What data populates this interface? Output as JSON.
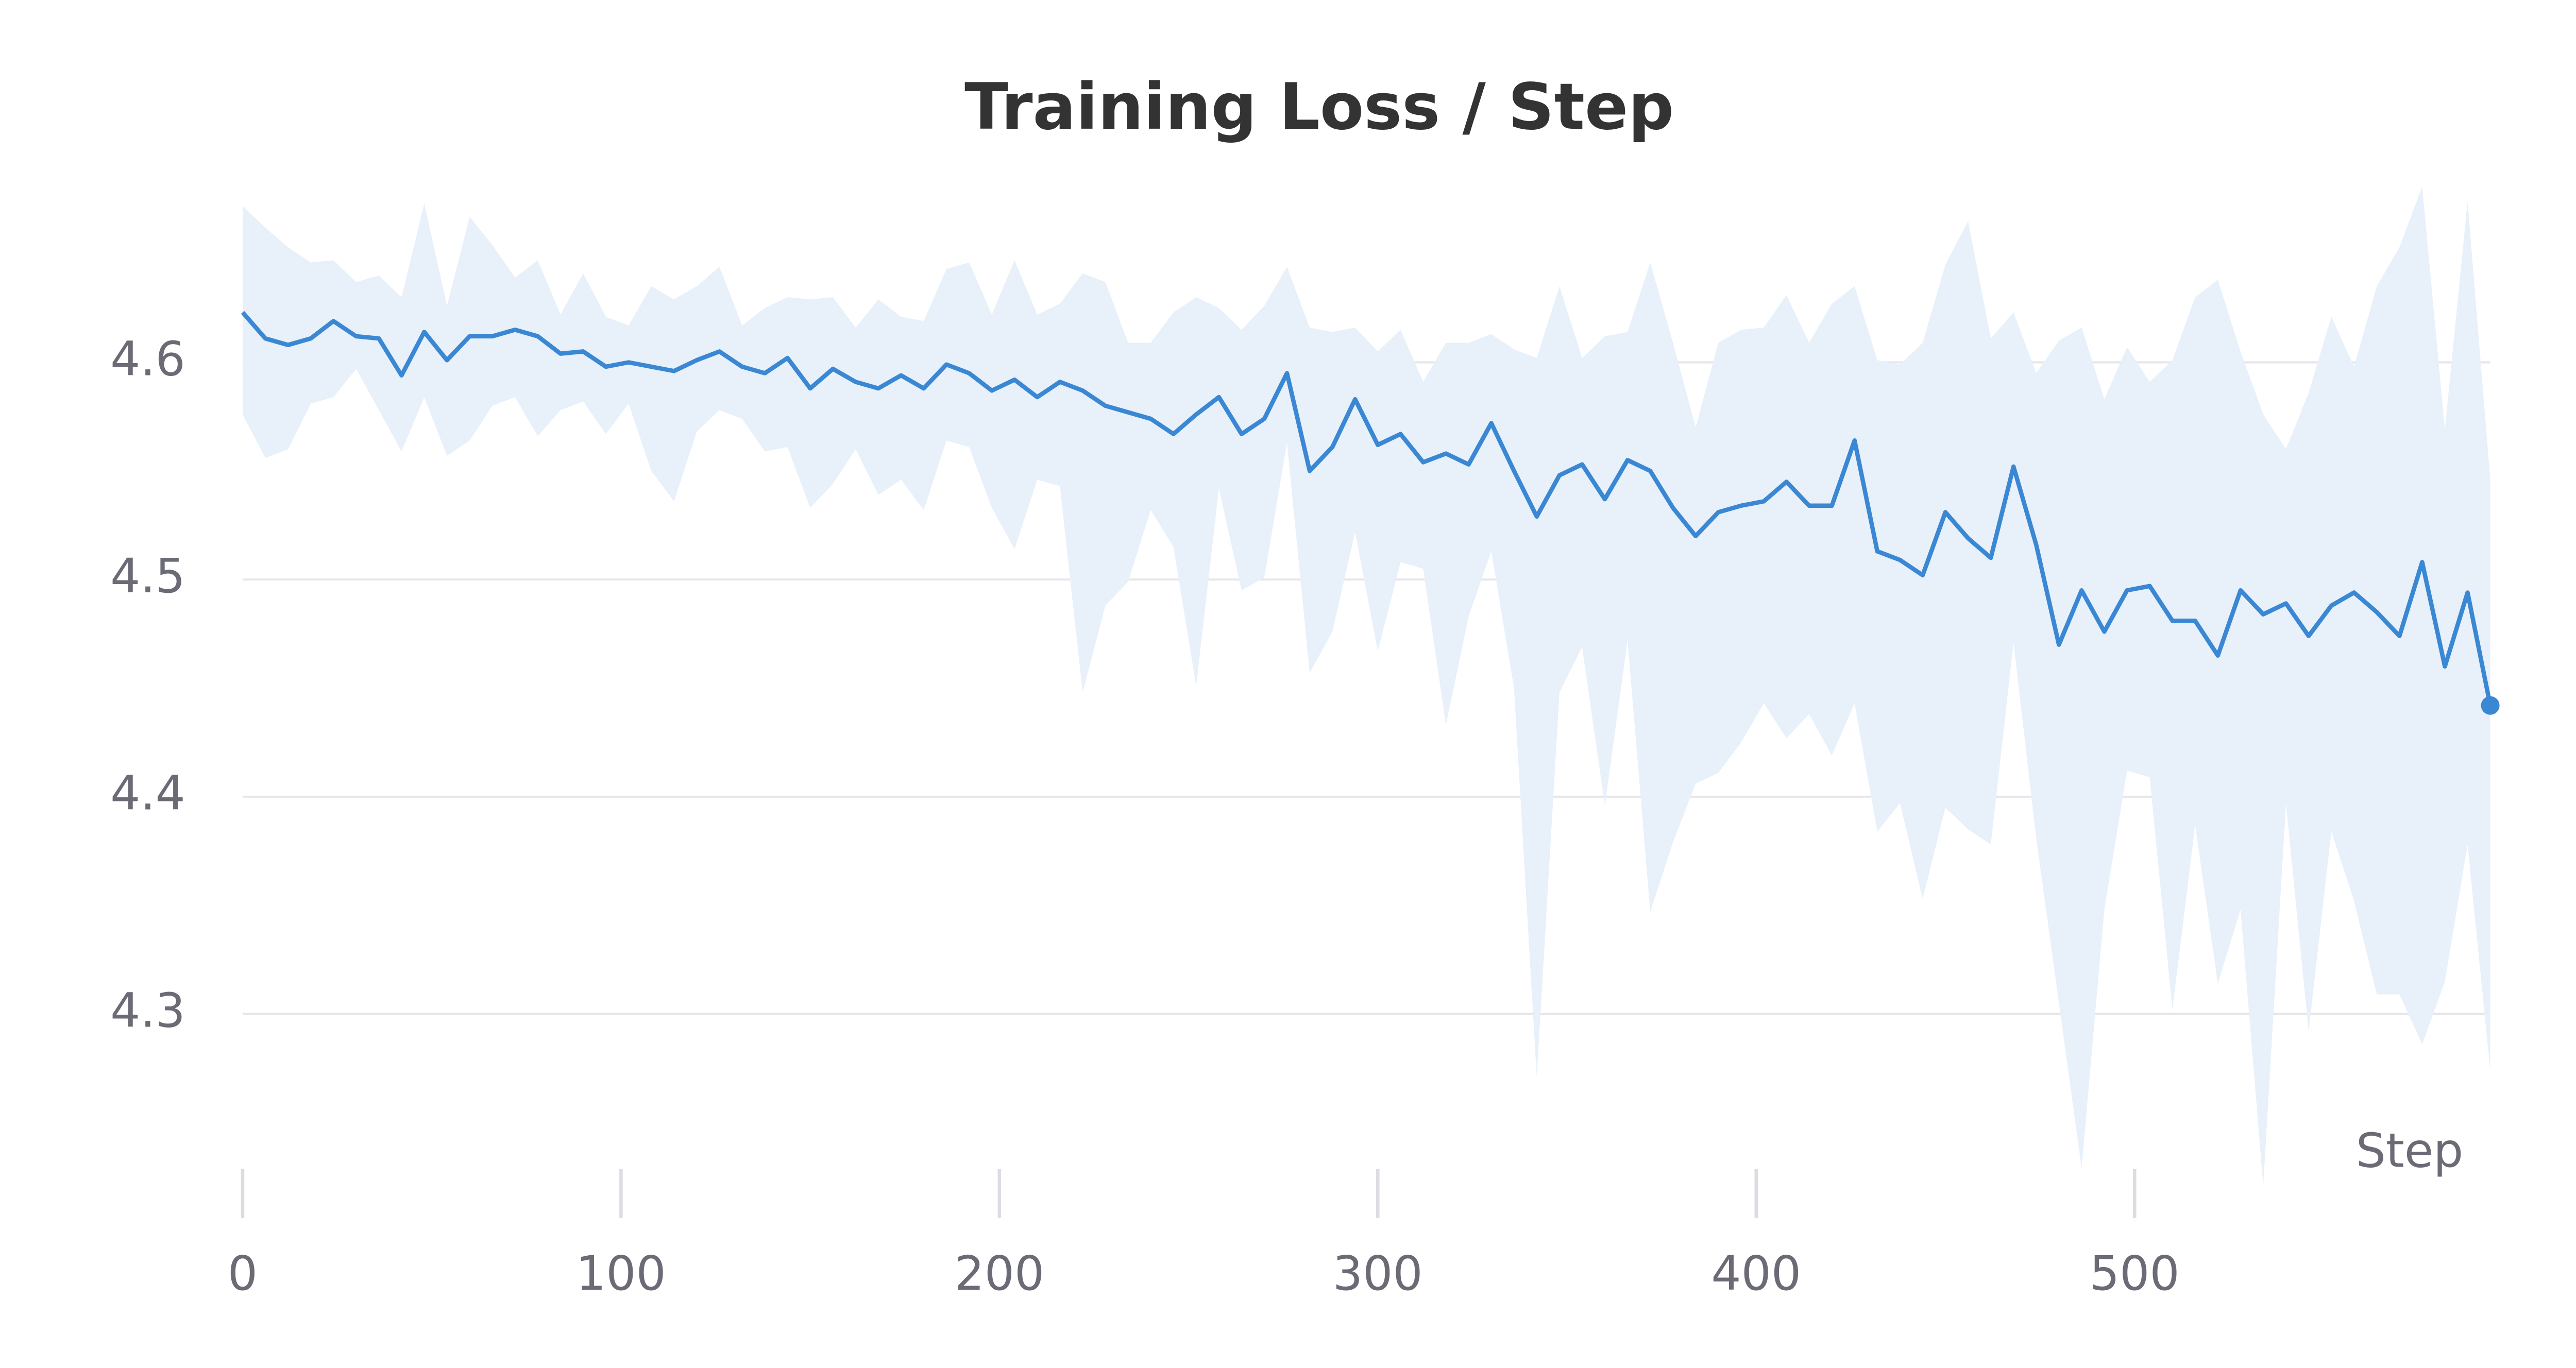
{
  "chart_data": {
    "type": "line",
    "title": "Training Loss / Step",
    "x_label": "Step",
    "x": [
      0,
      6,
      12,
      18,
      24,
      30,
      36,
      42,
      48,
      54,
      60,
      66,
      72,
      78,
      84,
      90,
      96,
      102,
      108,
      114,
      120,
      126,
      132,
      138,
      144,
      150,
      156,
      162,
      168,
      174,
      180,
      186,
      192,
      198,
      204,
      210,
      216,
      222,
      228,
      234,
      240,
      246,
      252,
      258,
      264,
      270,
      276,
      282,
      288,
      294,
      300,
      306,
      312,
      318,
      324,
      330,
      336,
      342,
      348,
      354,
      360,
      366,
      372,
      378,
      384,
      390,
      396,
      402,
      408,
      414,
      420,
      426,
      432,
      438,
      444,
      450,
      456,
      462,
      468,
      474,
      480,
      486,
      492,
      498,
      504,
      510,
      516,
      522,
      528,
      534,
      540,
      546,
      552,
      558,
      564,
      570,
      576,
      582,
      588,
      594
    ],
    "values": [
      4.623,
      4.611,
      4.608,
      4.611,
      4.619,
      4.612,
      4.611,
      4.594,
      4.614,
      4.601,
      4.612,
      4.612,
      4.615,
      4.612,
      4.604,
      4.605,
      4.598,
      4.6,
      4.598,
      4.596,
      4.601,
      4.605,
      4.598,
      4.595,
      4.602,
      4.588,
      4.597,
      4.591,
      4.588,
      4.594,
      4.588,
      4.599,
      4.595,
      4.587,
      4.592,
      4.584,
      4.591,
      4.587,
      4.58,
      4.577,
      4.574,
      4.567,
      4.576,
      4.584,
      4.567,
      4.574,
      4.595,
      4.55,
      4.561,
      4.583,
      4.562,
      4.567,
      4.554,
      4.558,
      4.553,
      4.572,
      4.55,
      4.529,
      4.548,
      4.553,
      4.537,
      4.555,
      4.55,
      4.533,
      4.52,
      4.531,
      4.534,
      4.536,
      4.545,
      4.534,
      4.534,
      4.564,
      4.513,
      4.509,
      4.502,
      4.531,
      4.519,
      4.51,
      4.552,
      4.516,
      4.47,
      4.495,
      4.476,
      4.495,
      4.497,
      4.481,
      4.481,
      4.465,
      4.495,
      4.484,
      4.489,
      4.474,
      4.488,
      4.494,
      4.485,
      4.474,
      4.508,
      4.46,
      4.494,
      4.442
    ],
    "band_upper": [
      4.672,
      4.662,
      4.653,
      4.646,
      4.647,
      4.637,
      4.64,
      4.63,
      4.673,
      4.626,
      4.667,
      4.654,
      4.639,
      4.647,
      4.622,
      4.641,
      4.621,
      4.617,
      4.635,
      4.629,
      4.635,
      4.644,
      4.617,
      4.625,
      4.63,
      4.629,
      4.63,
      4.616,
      4.629,
      4.621,
      4.619,
      4.643,
      4.646,
      4.622,
      4.647,
      4.622,
      4.627,
      4.641,
      4.637,
      4.609,
      4.609,
      4.623,
      4.63,
      4.625,
      4.615,
      4.626,
      4.644,
      4.616,
      4.614,
      4.616,
      4.605,
      4.615,
      4.591,
      4.609,
      4.609,
      4.613,
      4.606,
      4.602,
      4.635,
      4.602,
      4.612,
      4.614,
      4.646,
      4.609,
      4.57,
      4.609,
      4.615,
      4.616,
      4.631,
      4.609,
      4.627,
      4.635,
      4.601,
      4.599,
      4.609,
      4.645,
      4.665,
      4.611,
      4.623,
      4.595,
      4.61,
      4.616,
      4.583,
      4.607,
      4.591,
      4.601,
      4.63,
      4.638,
      4.605,
      4.576,
      4.56,
      4.586,
      4.621,
      4.598,
      4.635,
      4.653,
      4.681,
      4.569,
      4.674,
      4.546
    ],
    "band_lower": [
      4.576,
      4.556,
      4.56,
      4.581,
      4.584,
      4.597,
      4.578,
      4.559,
      4.584,
      4.557,
      4.564,
      4.58,
      4.584,
      4.566,
      4.578,
      4.582,
      4.567,
      4.581,
      4.55,
      4.536,
      4.568,
      4.578,
      4.574,
      4.559,
      4.561,
      4.533,
      4.544,
      4.56,
      4.539,
      4.546,
      4.532,
      4.564,
      4.561,
      4.533,
      4.514,
      4.546,
      4.543,
      4.448,
      4.488,
      4.499,
      4.532,
      4.515,
      4.451,
      4.542,
      4.495,
      4.501,
      4.563,
      4.457,
      4.476,
      4.522,
      4.467,
      4.508,
      4.505,
      4.433,
      4.483,
      4.513,
      4.45,
      4.271,
      4.448,
      4.469,
      4.396,
      4.472,
      4.347,
      4.379,
      4.406,
      4.411,
      4.425,
      4.443,
      4.427,
      4.438,
      4.419,
      4.443,
      4.384,
      4.397,
      4.353,
      4.395,
      4.385,
      4.378,
      4.471,
      4.381,
      4.305,
      4.229,
      4.348,
      4.412,
      4.409,
      4.302,
      4.387,
      4.314,
      4.348,
      4.221,
      4.397,
      4.292,
      4.384,
      4.352,
      4.309,
      4.309,
      4.286,
      4.315,
      4.378,
      4.274
    ],
    "color": "#3a87d3",
    "band_color": "#e8f0fa",
    "xlim": [
      0,
      594
    ],
    "xticks": [
      0,
      100,
      200,
      300,
      400,
      500
    ],
    "ylim": [
      4.22,
      4.69
    ],
    "yticks": [
      4.3,
      4.4,
      4.5,
      4.6
    ],
    "grid": true
  }
}
